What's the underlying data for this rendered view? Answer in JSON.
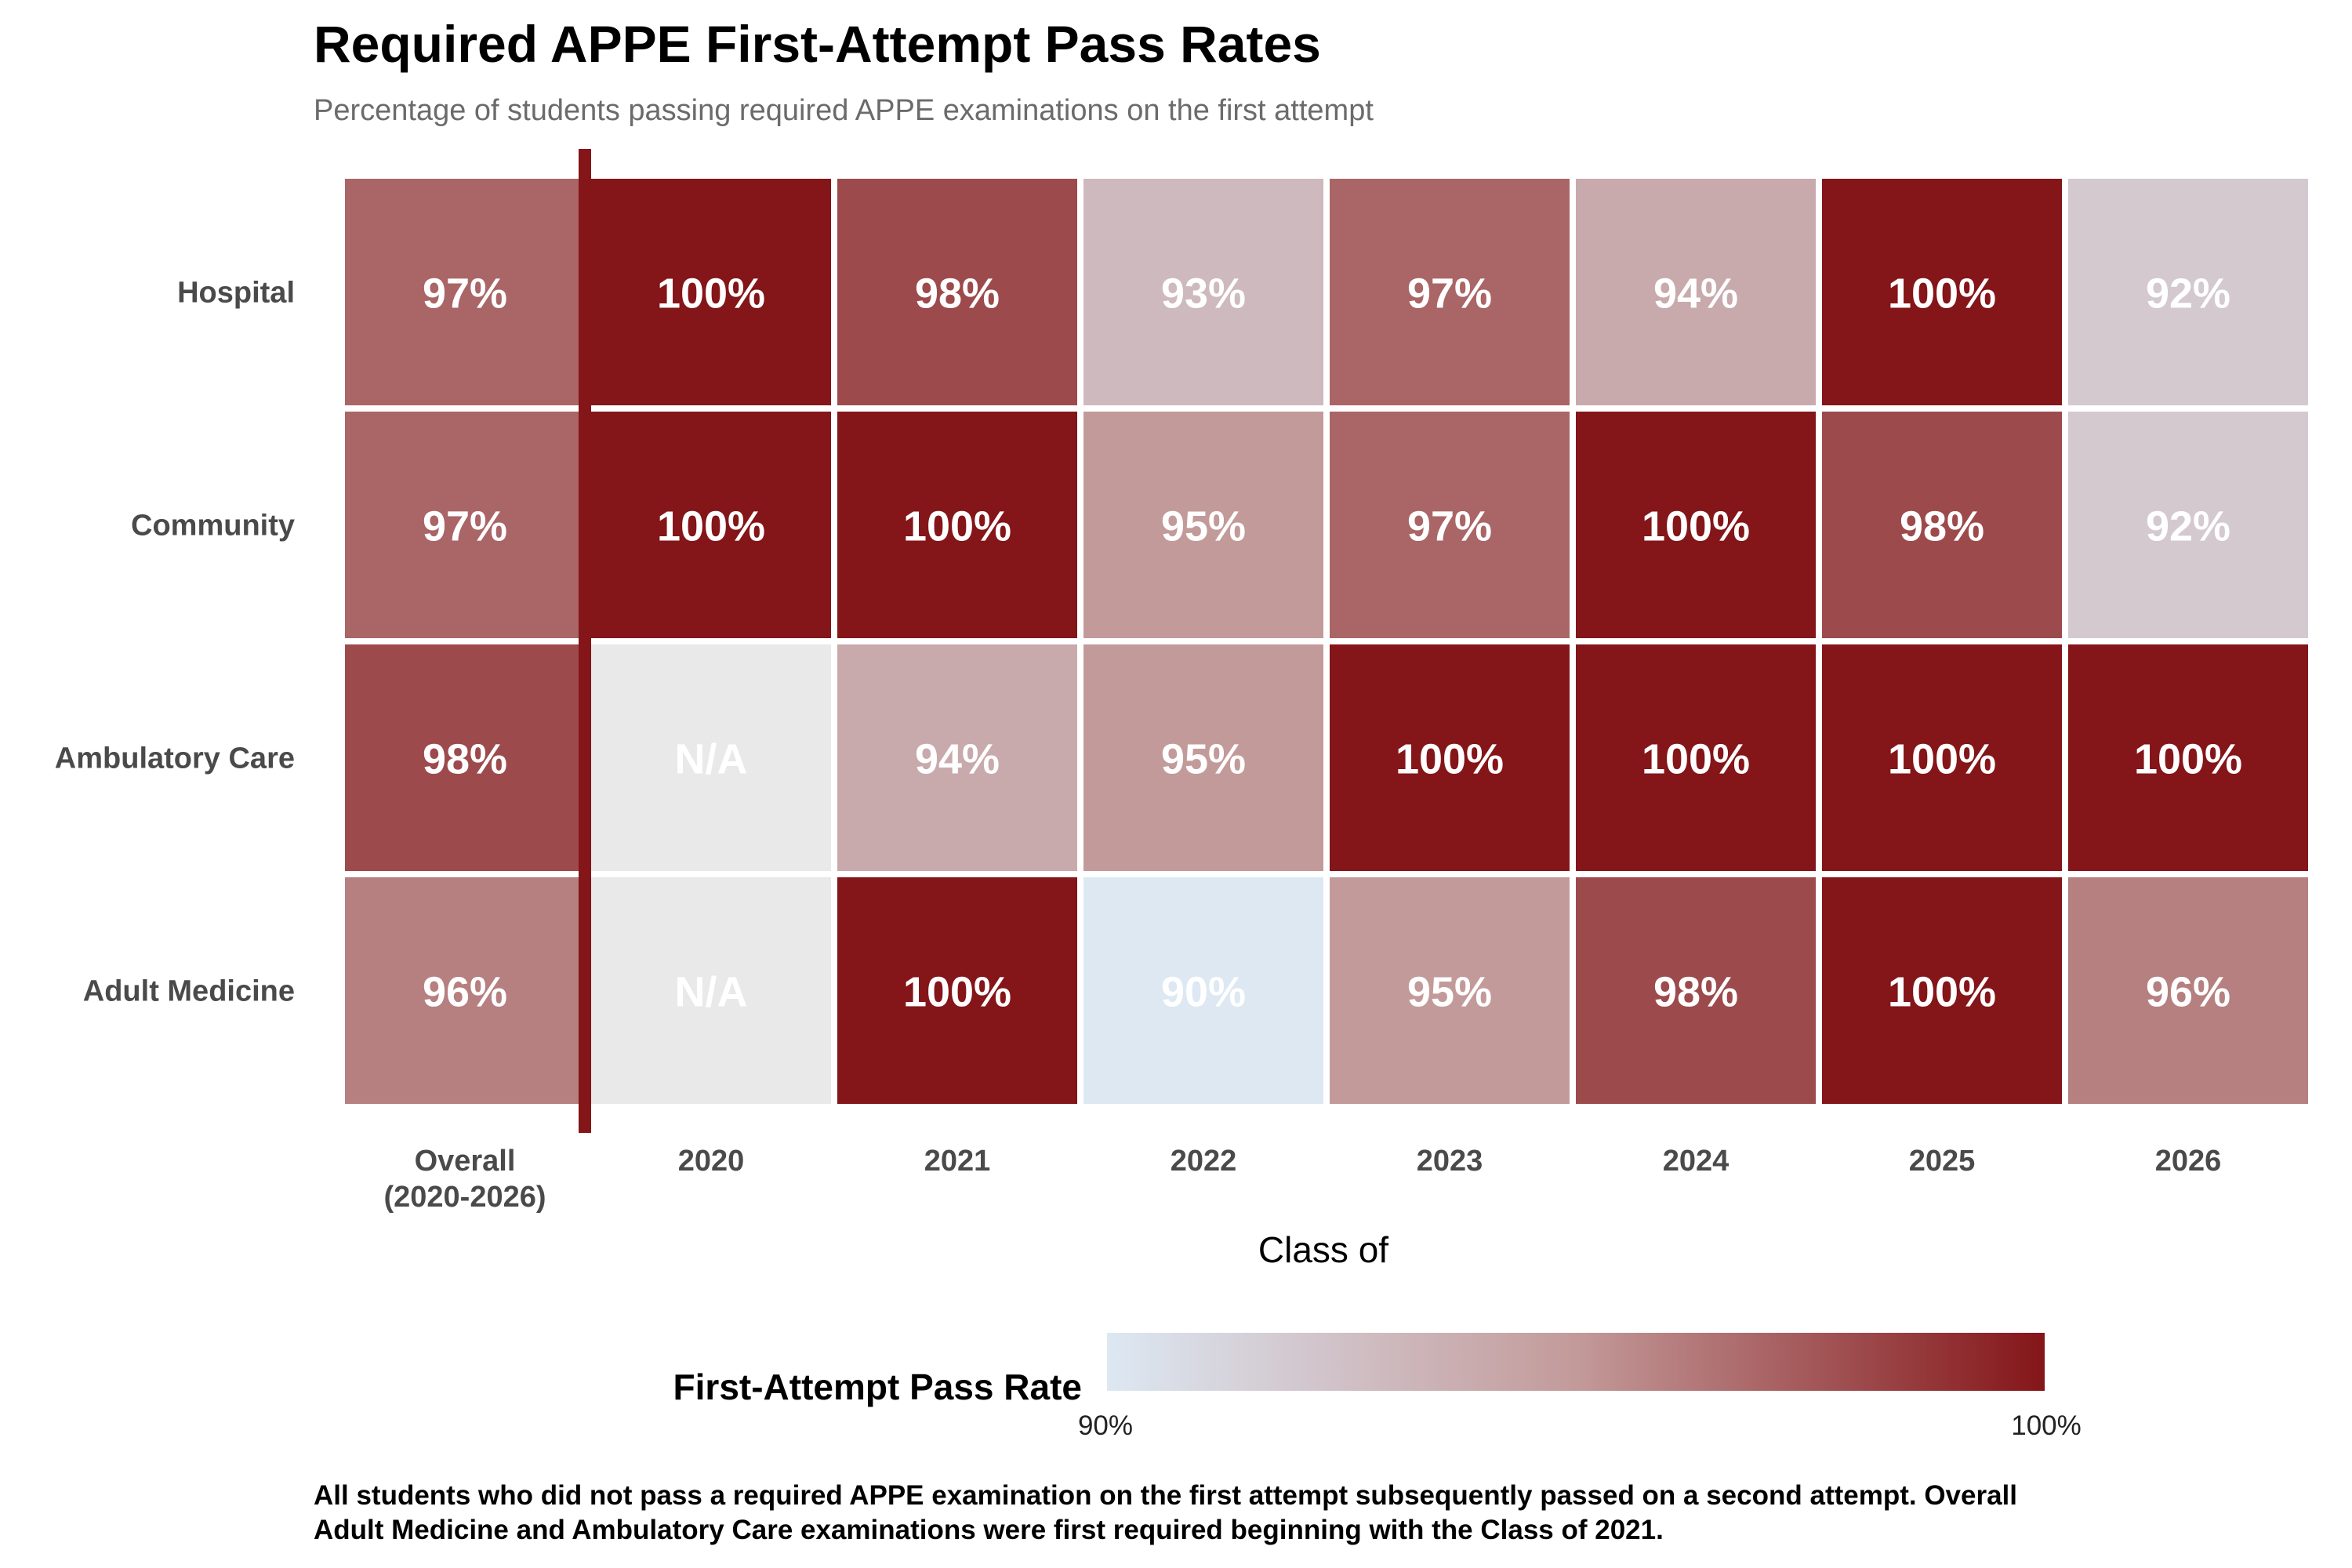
{
  "title": "Required APPE First-Attempt Pass Rates",
  "subtitle": "Percentage of students passing required APPE examinations on the first attempt",
  "caption": {
    "line1": "All students who did not pass a required APPE examination on the first attempt subsequently passed on a second attempt. Overall",
    "line2": "Adult Medicine and Ambulatory Care examinations were first required beginning with the Class of 2021."
  },
  "chart_data": {
    "type": "heatmap",
    "xlabel": "Class of",
    "x_categories": [
      "Overall\n(2020-2026)",
      "2020",
      "2021",
      "2022",
      "2023",
      "2024",
      "2025",
      "2026"
    ],
    "y_categories": [
      "Hospital",
      "Community",
      "Ambulatory Care",
      "Adult Medicine"
    ],
    "values": [
      [
        97,
        100,
        98,
        93,
        97,
        94,
        100,
        92
      ],
      [
        97,
        100,
        100,
        95,
        97,
        100,
        98,
        92
      ],
      [
        98,
        null,
        94,
        95,
        100,
        100,
        100,
        100
      ],
      [
        96,
        null,
        100,
        90,
        95,
        98,
        100,
        96
      ]
    ],
    "missing_label": "N/A",
    "value_suffix": "%",
    "legend": {
      "title": "First-Attempt Pass Rate",
      "min": 90,
      "max": 100,
      "min_label": "90%",
      "max_label": "100%",
      "low_color": "#dde8f3",
      "high_color": "#841518",
      "position": "bottom"
    },
    "colors": {
      "missing": "#e9e9e9",
      "separator_line": "#841518",
      "cell_text": "#ffffff"
    }
  }
}
